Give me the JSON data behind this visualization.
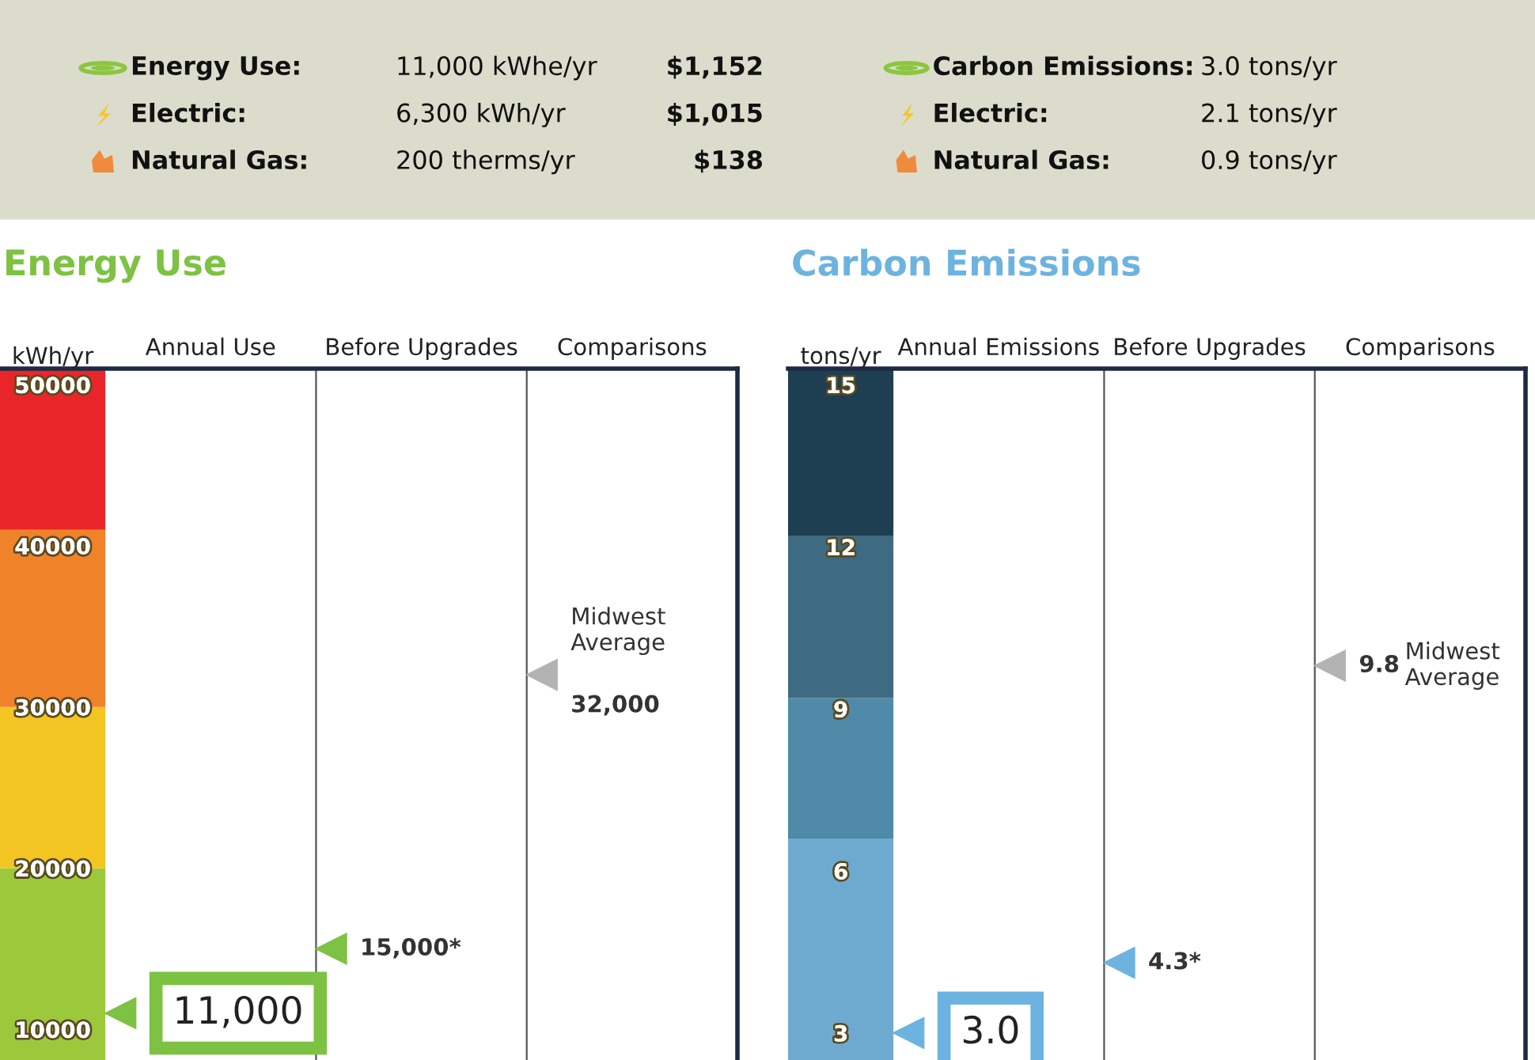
{
  "chart_data": [
    {
      "type": "other",
      "annotations": [
        "Energy Use:",
        "11,000 kWhe/yr",
        "$1,152",
        "Electric:",
        "6,300 kWh/yr",
        "$1,015",
        "Natural Gas:",
        "200 therms/yr",
        "$138"
      ]
    },
    {
      "type": "other",
      "annotations": [
        "Carbon Emissions:",
        "3.0 tons/yr",
        "Electric:",
        "2.1 tons/yr",
        "Natural Gas:",
        "0.9 tons/yr"
      ]
    },
    {
      "type": "scatter",
      "title": "Energy Use",
      "ylabel": "kWh/yr",
      "categories": [
        "Annual Use",
        "Before Upgrades",
        "Comparisons"
      ],
      "values": [
        11000,
        15000,
        32000
      ],
      "colors": [
        "#7dc242",
        "#7dc242",
        "#b3b3b3"
      ],
      "value_labels": [
        "11,000",
        "15,000*",
        "32,000"
      ],
      "marker": "triangle",
      "annotations": [
        "Midwest Average"
      ],
      "ylim": [
        8100,
        51000
      ],
      "yticks": [
        10000,
        20000,
        30000,
        40000,
        50000
      ],
      "bands": [
        {
          "axis": "y",
          "from": 8100,
          "to": 20000,
          "color": "#9cc93b"
        },
        {
          "axis": "y",
          "from": 20000,
          "to": 30000,
          "color": "#f2c523"
        },
        {
          "axis": "y",
          "from": 30000,
          "to": 41000,
          "color": "#f0822a"
        },
        {
          "axis": "y",
          "from": 41000,
          "to": 51000,
          "color": "#e8262a"
        }
      ]
    },
    {
      "type": "scatter",
      "title": "Carbon Emissions",
      "ylabel": "tons/yr",
      "categories": [
        "Annual Emissions",
        "Before Upgrades",
        "Comparisons"
      ],
      "values": [
        3.0,
        4.3,
        9.8
      ],
      "colors": [
        "#6db3e0",
        "#6db3e0",
        "#b3b3b3"
      ],
      "value_labels": [
        "3.0",
        "4.3*",
        "9.8"
      ],
      "marker": "triangle",
      "annotations": [
        "Midwest Average"
      ],
      "ylim": [
        2.5,
        15.3
      ],
      "yticks": [
        3,
        6,
        9,
        12,
        15
      ],
      "bands": [
        {
          "axis": "y",
          "from": 2.5,
          "to": 6.6,
          "color": "#6eaad0"
        },
        {
          "axis": "y",
          "from": 6.6,
          "to": 9.2,
          "color": "#4f8aa8"
        },
        {
          "axis": "y",
          "from": 9.2,
          "to": 12.2,
          "color": "#3e6a82"
        },
        {
          "axis": "y",
          "from": 12.2,
          "to": 15.3,
          "color": "#1e3e52"
        }
      ]
    }
  ]
}
